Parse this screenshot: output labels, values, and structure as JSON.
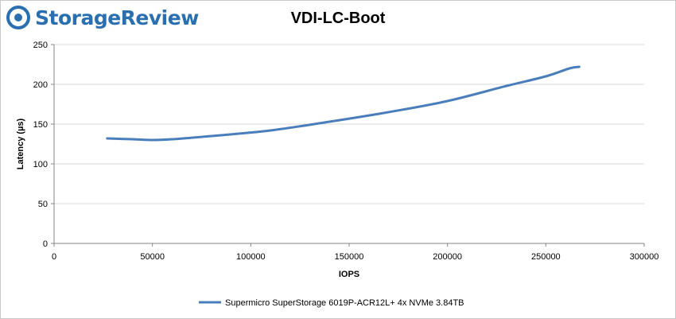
{
  "brand": {
    "name": "StorageReview",
    "logo_icon": "storagereview-logo-icon",
    "color": "#2a6fb0"
  },
  "chart_data": {
    "type": "line",
    "title": "VDI-LC-Boot",
    "xlabel": "IOPS",
    "ylabel": "Latency (µs)",
    "xlim": [
      0,
      300000
    ],
    "ylim": [
      0,
      250
    ],
    "xticks": [
      0,
      50000,
      100000,
      150000,
      200000,
      250000,
      300000
    ],
    "yticks": [
      0,
      50,
      100,
      150,
      200,
      250
    ],
    "grid": "horizontal",
    "legend_position": "bottom",
    "series": [
      {
        "name": "Supermicro SuperStorage 6019P-ACR12L+ 4x NVMe 3.84TB",
        "color": "#4a7ebb",
        "x": [
          27000,
          40000,
          50000,
          60000,
          80000,
          110000,
          140000,
          170000,
          200000,
          230000,
          250000,
          262000,
          267000
        ],
        "y": [
          132,
          131,
          130,
          131,
          135,
          142,
          153,
          165,
          179,
          198,
          210,
          220,
          222
        ]
      }
    ]
  }
}
